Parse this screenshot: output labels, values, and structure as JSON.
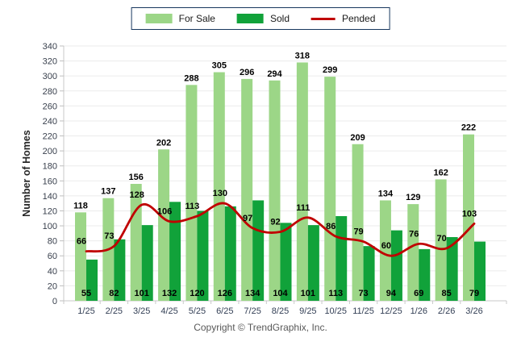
{
  "chart_data": {
    "type": "bar",
    "title": "",
    "categories": [
      "1/25",
      "2/25",
      "3/25",
      "4/25",
      "5/25",
      "6/25",
      "7/25",
      "8/25",
      "9/25",
      "10/25",
      "11/25",
      "12/25",
      "1/26",
      "2/26",
      "3/26"
    ],
    "series": [
      {
        "name": "For Sale",
        "type": "bar",
        "color": "#9CD687",
        "values": [
          118,
          137,
          156,
          202,
          288,
          305,
          296,
          294,
          318,
          299,
          209,
          134,
          129,
          162,
          222
        ]
      },
      {
        "name": "Sold",
        "type": "bar",
        "color": "#11A23A",
        "values": [
          55,
          82,
          101,
          132,
          120,
          126,
          134,
          104,
          101,
          113,
          73,
          94,
          69,
          85,
          79
        ]
      },
      {
        "name": "Pended",
        "type": "line",
        "color": "#C00000",
        "values": [
          66,
          73,
          128,
          106,
          113,
          130,
          97,
          92,
          111,
          86,
          79,
          60,
          76,
          70,
          103
        ]
      }
    ],
    "xlabel": "",
    "ylabel": "Number of Homes",
    "ylim": [
      0,
      340
    ],
    "ytick_step": 20,
    "grid": true,
    "legend_position": "top"
  },
  "footer": {
    "copyright": "Copyright © TrendGraphix, Inc."
  },
  "colors": {
    "grid": "#EBEBEB",
    "axis": "#C9C9C9",
    "tick_label": "#39404D",
    "x_label": "#333F55",
    "value_label": "#000000",
    "legend_border": "#17375E",
    "axis_title": "#262626"
  }
}
